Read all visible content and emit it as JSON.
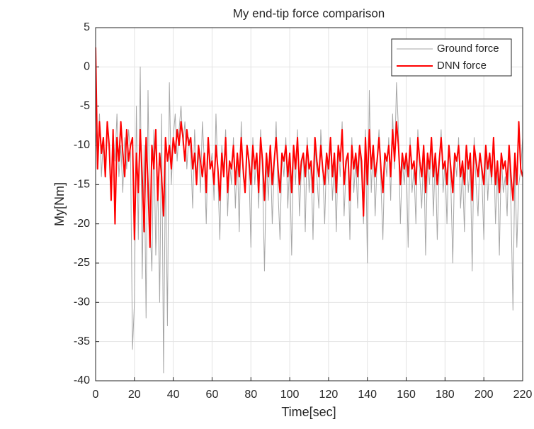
{
  "chart_data": {
    "type": "line",
    "title": "My end-tip force comparison",
    "x_label": "Time[sec]",
    "y_label": "My[Nm]",
    "xlim": [
      0,
      220
    ],
    "ylim": [
      -40,
      5
    ],
    "xticks": [
      0,
      20,
      40,
      60,
      80,
      100,
      120,
      140,
      160,
      180,
      200,
      220
    ],
    "yticks": [
      -40,
      -35,
      -30,
      -25,
      -20,
      -15,
      -10,
      -5,
      0,
      5
    ],
    "grid": true,
    "legend": "upper right",
    "x": [
      0,
      1,
      2,
      3,
      4,
      5,
      6,
      7,
      8,
      9,
      10,
      11,
      12,
      13,
      14,
      15,
      16,
      17,
      18,
      19,
      20,
      21,
      22,
      23,
      24,
      25,
      26,
      27,
      28,
      29,
      30,
      31,
      32,
      33,
      34,
      35,
      36,
      37,
      38,
      39,
      40,
      41,
      42,
      43,
      44,
      45,
      46,
      47,
      48,
      49,
      50,
      51,
      52,
      53,
      54,
      55,
      56,
      57,
      58,
      59,
      60,
      61,
      62,
      63,
      64,
      65,
      66,
      67,
      68,
      69,
      70,
      71,
      72,
      73,
      74,
      75,
      76,
      77,
      78,
      79,
      80,
      81,
      82,
      83,
      84,
      85,
      86,
      87,
      88,
      89,
      90,
      91,
      92,
      93,
      94,
      95,
      96,
      97,
      98,
      99,
      100,
      101,
      102,
      103,
      104,
      105,
      106,
      107,
      108,
      109,
      110,
      111,
      112,
      113,
      114,
      115,
      116,
      117,
      118,
      119,
      120,
      121,
      122,
      123,
      124,
      125,
      126,
      127,
      128,
      129,
      130,
      131,
      132,
      133,
      134,
      135,
      136,
      137,
      138,
      139,
      140,
      141,
      142,
      143,
      144,
      145,
      146,
      147,
      148,
      149,
      150,
      151,
      152,
      153,
      154,
      155,
      156,
      157,
      158,
      159,
      160,
      161,
      162,
      163,
      164,
      165,
      166,
      167,
      168,
      169,
      170,
      171,
      172,
      173,
      174,
      175,
      176,
      177,
      178,
      179,
      180,
      181,
      182,
      183,
      184,
      185,
      186,
      187,
      188,
      189,
      190,
      191,
      192,
      193,
      194,
      195,
      196,
      197,
      198,
      199,
      200,
      201,
      202,
      203,
      204,
      205,
      206,
      207,
      208,
      209,
      210,
      211,
      212,
      213,
      214,
      215,
      216,
      217,
      218,
      219,
      220
    ],
    "series": [
      {
        "name": "Ground force",
        "color": "#a6a6a6",
        "width": 1,
        "values": [
          -8,
          -12,
          -6,
          -14,
          -9,
          -13,
          -7,
          -11,
          -15,
          -8,
          -12,
          -6,
          -14,
          -10,
          -16,
          -9,
          -13,
          -8,
          -11,
          -36,
          -30,
          -5,
          -22,
          0,
          -27,
          -10,
          -32,
          -3,
          -20,
          -26,
          -8,
          -24,
          -14,
          -30,
          -6,
          -39,
          -12,
          -33,
          -2,
          -15,
          -9,
          -6,
          -12,
          -8,
          -5,
          -10,
          -7,
          -13,
          -9,
          -11,
          -18,
          -8,
          -14,
          -10,
          -16,
          -7,
          -12,
          -20,
          -9,
          -13,
          -11,
          -17,
          -6,
          -14,
          -22,
          -10,
          -13,
          -8,
          -19,
          -12,
          -15,
          -9,
          -18,
          -11,
          -21,
          -7,
          -14,
          -16,
          -10,
          -13,
          -23,
          -9,
          -15,
          -11,
          -18,
          -8,
          -14,
          -26,
          -12,
          -17,
          -10,
          -20,
          -13,
          -7,
          -16,
          -22,
          -11,
          -14,
          -9,
          -18,
          -12,
          -24,
          -10,
          -15,
          -8,
          -19,
          -13,
          -11,
          -21,
          -9,
          -16,
          -12,
          -22,
          -10,
          -14,
          -18,
          -8,
          -13,
          -20,
          -11,
          -15,
          -9,
          -17,
          -12,
          -21,
          -10,
          -14,
          -7,
          -19,
          -13,
          -11,
          -22,
          -9,
          -16,
          -12,
          -18,
          -10,
          -14,
          -20,
          -8,
          -25,
          -3,
          -16,
          -10,
          -19,
          -12,
          -8,
          -15,
          -22,
          -11,
          -14,
          -9,
          -17,
          -6,
          -13,
          -2,
          -8,
          -20,
          -12,
          -15,
          -11,
          -23,
          -9,
          -16,
          -13,
          -20,
          -8,
          -14,
          -18,
          -10,
          -24,
          -12,
          -15,
          -9,
          -19,
          -11,
          -22,
          -13,
          -8,
          -16,
          -12,
          -20,
          -10,
          -15,
          -25,
          -11,
          -14,
          -9,
          -18,
          -13,
          -21,
          -10,
          -16,
          -12,
          -26,
          -9,
          -15,
          -19,
          -11,
          -14,
          -22,
          -10,
          -17,
          -12,
          -15,
          -9,
          -20,
          -13,
          -24,
          -11,
          -16,
          -14,
          -19,
          -10,
          -18,
          -31,
          -12,
          -23,
          -15,
          -13,
          -9
        ]
      },
      {
        "name": "DNN force",
        "color": "#ff0000",
        "width": 2,
        "values": [
          2.5,
          -13,
          -7,
          -11,
          -9,
          -14,
          -7,
          -10,
          -17,
          -8,
          -20,
          -9,
          -12,
          -7,
          -11,
          -14,
          -8,
          -12,
          -10,
          -9,
          -22,
          -11,
          -16,
          -8,
          -14,
          -21,
          -9,
          -15,
          -23,
          -10,
          -13,
          -8,
          -17,
          -11,
          -14,
          -19,
          -9,
          -12,
          -10,
          -13,
          -9,
          -11,
          -8,
          -10,
          -7,
          -9,
          -12,
          -8,
          -10,
          -9,
          -13,
          -11,
          -15,
          -10,
          -12,
          -14,
          -11,
          -16,
          -9,
          -13,
          -12,
          -15,
          -10,
          -13,
          -17,
          -11,
          -14,
          -9,
          -16,
          -12,
          -13,
          -10,
          -15,
          -11,
          -14,
          -9,
          -13,
          -16,
          -10,
          -12,
          -15,
          -10,
          -13,
          -11,
          -16,
          -9,
          -12,
          -17,
          -11,
          -14,
          -10,
          -15,
          -12,
          -9,
          -13,
          -16,
          -11,
          -12,
          -10,
          -14,
          -11,
          -16,
          -10,
          -13,
          -9,
          -15,
          -12,
          -11,
          -14,
          -10,
          -13,
          -12,
          -16,
          -9,
          -12,
          -14,
          -10,
          -13,
          -15,
          -11,
          -13,
          -9,
          -14,
          -11,
          -16,
          -10,
          -12,
          -8,
          -15,
          -12,
          -11,
          -17,
          -10,
          -13,
          -11,
          -14,
          -10,
          -12,
          -19,
          -9,
          -15,
          -8,
          -13,
          -10,
          -14,
          -12,
          -9,
          -13,
          -16,
          -11,
          -12,
          -10,
          -14,
          -8,
          -12,
          -7,
          -10,
          -15,
          -11,
          -13,
          -11,
          -14,
          -10,
          -13,
          -12,
          -15,
          -9,
          -12,
          -14,
          -10,
          -16,
          -11,
          -13,
          -9,
          -14,
          -11,
          -15,
          -12,
          -9,
          -13,
          -12,
          -15,
          -10,
          -13,
          -16,
          -11,
          -12,
          -10,
          -14,
          -12,
          -15,
          -10,
          -13,
          -11,
          -17,
          -10,
          -12,
          -14,
          -11,
          -13,
          -15,
          -10,
          -13,
          -11,
          -14,
          -9,
          -15,
          -12,
          -16,
          -11,
          -13,
          -12,
          -15,
          -10,
          -14,
          -17,
          -11,
          -15,
          -7,
          -13,
          -14
        ]
      }
    ]
  }
}
